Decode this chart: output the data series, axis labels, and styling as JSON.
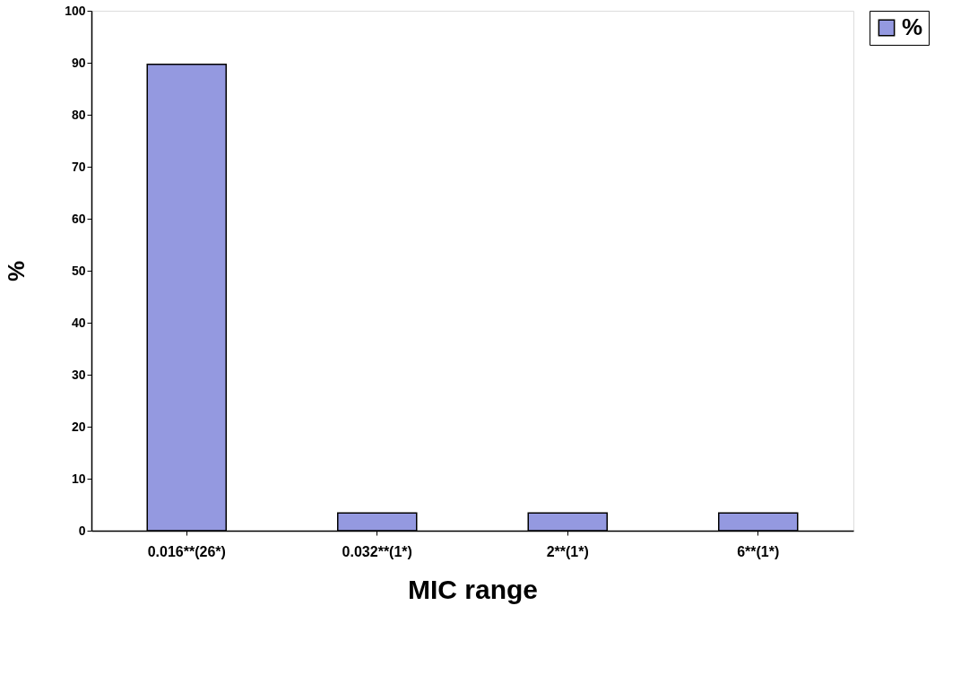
{
  "chart_data": {
    "type": "bar",
    "xlabel": "MIC range",
    "ylabel": "%",
    "categories": [
      "0.016**(26*)",
      "0.032**(1*)",
      "2**(1*)",
      "6**(1*)"
    ],
    "series": [
      {
        "name": "%",
        "color": "#9499e0",
        "values": [
          89.7,
          3.4,
          3.4,
          3.4
        ]
      }
    ],
    "ylim": [
      0,
      100
    ],
    "yticks": [
      0,
      10,
      20,
      30,
      40,
      50,
      60,
      70,
      80,
      90,
      100
    ],
    "grid": false,
    "legend": "right"
  }
}
